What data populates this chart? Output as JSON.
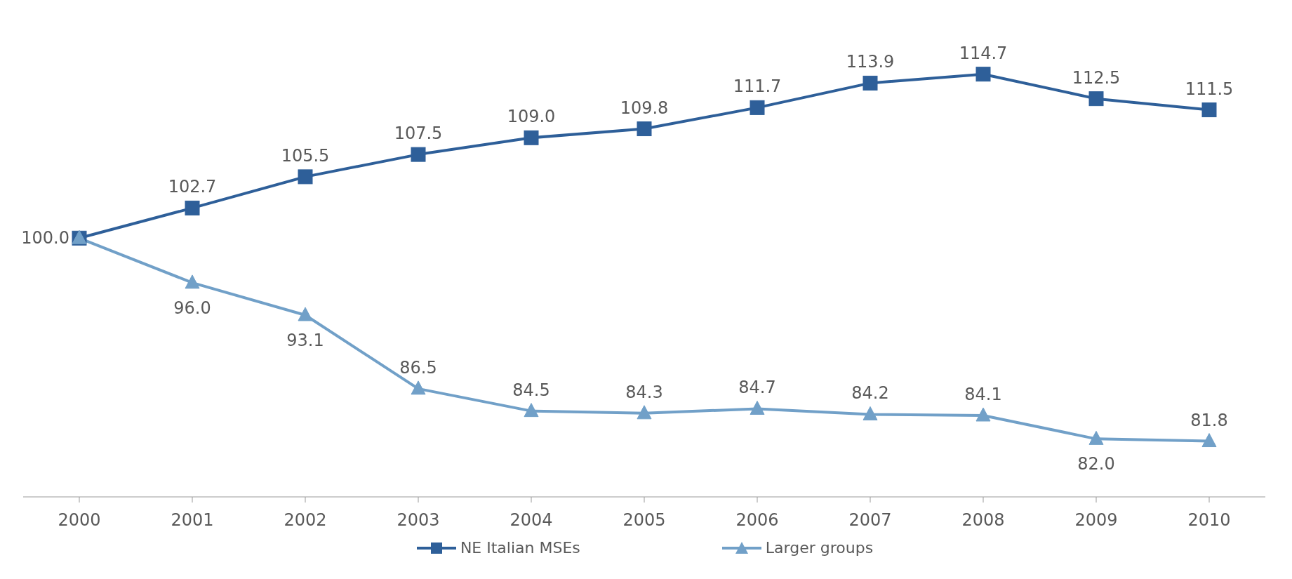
{
  "chart_data": {
    "type": "line",
    "categories": [
      "2000",
      "2001",
      "2002",
      "2003",
      "2004",
      "2005",
      "2006",
      "2007",
      "2008",
      "2009",
      "2010"
    ],
    "series": [
      {
        "name": "NE Italian MSEs",
        "color": "#2e5f99",
        "marker": "square",
        "values": [
          100.0,
          102.7,
          105.5,
          107.5,
          109.0,
          109.8,
          111.7,
          113.9,
          114.7,
          112.5,
          111.5
        ],
        "value_labels": [
          "100.0",
          "102.7",
          "105.5",
          "107.5",
          "109.0",
          "109.8",
          "111.7",
          "113.9",
          "114.7",
          "112.5",
          "111.5"
        ]
      },
      {
        "name": "Larger groups",
        "color": "#71a0c8",
        "marker": "triangle",
        "values": [
          100.0,
          96.0,
          93.1,
          86.5,
          84.5,
          84.3,
          84.7,
          84.2,
          84.1,
          82.0,
          81.8
        ],
        "value_labels": [
          null,
          "96.0",
          "93.1",
          "86.5",
          "84.5",
          "84.3",
          "84.7",
          "84.2",
          "84.1",
          "82.0",
          "81.8"
        ]
      }
    ],
    "legend": "bottom",
    "tick_labels": "x"
  }
}
